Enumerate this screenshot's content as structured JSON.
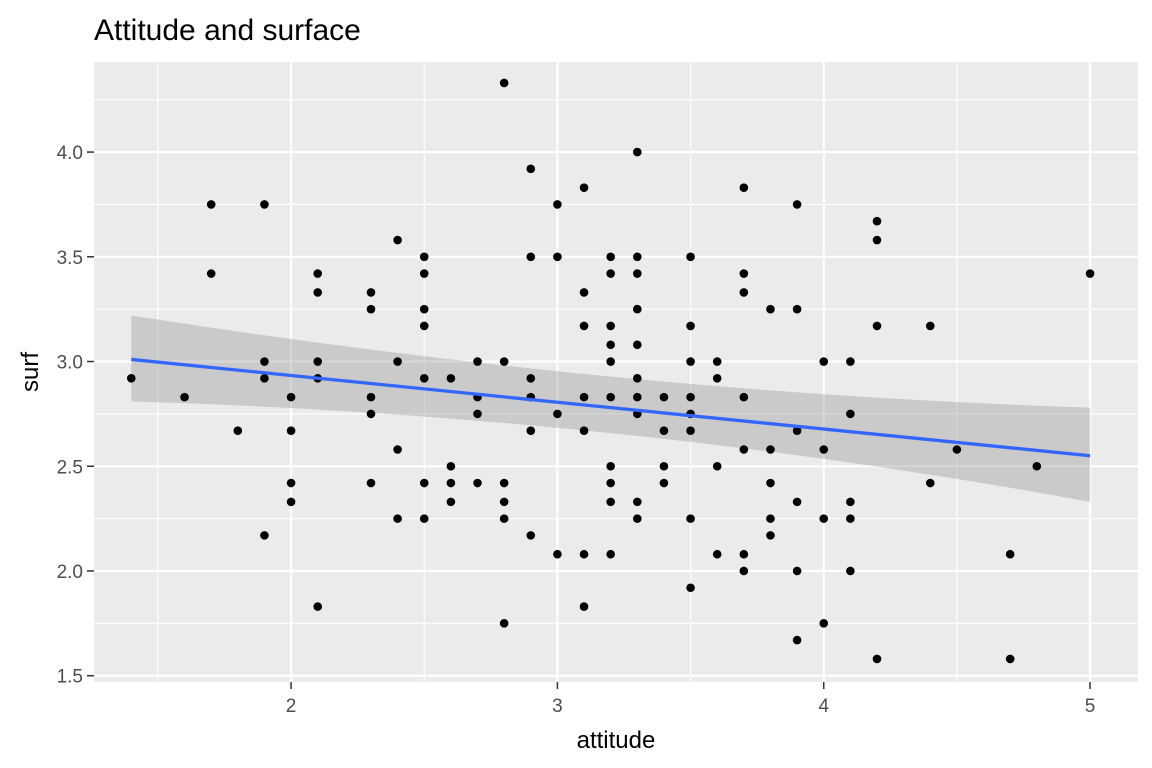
{
  "chart_data": {
    "type": "scatter",
    "title": "Attitude and surface",
    "xlabel": "attitude",
    "ylabel": "surf",
    "xlim": [
      1.26,
      5.18
    ],
    "ylim": [
      1.47,
      4.43
    ],
    "x_ticks": [
      2,
      3,
      4,
      5
    ],
    "x_tick_labels": [
      "2",
      "3",
      "4",
      "5"
    ],
    "y_ticks": [
      1.5,
      2.0,
      2.5,
      3.0,
      3.5,
      4.0
    ],
    "y_tick_labels": [
      "1.5",
      "2.0",
      "2.5",
      "3.0",
      "3.5",
      "4.0"
    ],
    "grid": true,
    "colors": {
      "panel_background": "#ebebeb",
      "grid": "#ffffff",
      "points": "#000000",
      "trend_line": "#3366ff",
      "confidence_band": "#999999"
    },
    "trend": {
      "method": "linear",
      "x": [
        1.4,
        5.0
      ],
      "y": [
        3.01,
        2.55
      ],
      "ci_lower": [
        2.81,
        2.33
      ],
      "ci_upper": [
        3.22,
        2.78
      ],
      "ci_mid_x": 3.25,
      "ci_mid_lower": 2.74,
      "ci_mid_upper": 2.85
    },
    "points": [
      [
        1.4,
        2.92
      ],
      [
        1.6,
        2.83
      ],
      [
        1.7,
        3.75
      ],
      [
        1.7,
        3.42
      ],
      [
        1.8,
        2.67
      ],
      [
        1.9,
        3.75
      ],
      [
        1.9,
        3.0
      ],
      [
        1.9,
        2.92
      ],
      [
        1.9,
        2.17
      ],
      [
        2.0,
        2.83
      ],
      [
        2.0,
        2.67
      ],
      [
        2.0,
        2.42
      ],
      [
        2.0,
        2.33
      ],
      [
        2.1,
        3.42
      ],
      [
        2.1,
        3.33
      ],
      [
        2.1,
        3.0
      ],
      [
        2.1,
        2.92
      ],
      [
        2.1,
        1.83
      ],
      [
        2.3,
        3.33
      ],
      [
        2.3,
        3.25
      ],
      [
        2.3,
        2.83
      ],
      [
        2.3,
        2.75
      ],
      [
        2.3,
        2.42
      ],
      [
        2.4,
        3.58
      ],
      [
        2.4,
        3.0
      ],
      [
        2.4,
        2.58
      ],
      [
        2.4,
        2.25
      ],
      [
        2.5,
        3.5
      ],
      [
        2.5,
        3.42
      ],
      [
        2.5,
        3.25
      ],
      [
        2.5,
        3.17
      ],
      [
        2.5,
        2.92
      ],
      [
        2.5,
        2.42
      ],
      [
        2.5,
        2.25
      ],
      [
        2.6,
        2.92
      ],
      [
        2.6,
        2.5
      ],
      [
        2.6,
        2.42
      ],
      [
        2.6,
        2.33
      ],
      [
        2.7,
        3.0
      ],
      [
        2.7,
        2.83
      ],
      [
        2.7,
        2.75
      ],
      [
        2.7,
        2.42
      ],
      [
        2.8,
        4.33
      ],
      [
        2.8,
        3.0
      ],
      [
        2.8,
        2.42
      ],
      [
        2.8,
        2.33
      ],
      [
        2.8,
        2.25
      ],
      [
        2.8,
        1.75
      ],
      [
        2.9,
        3.92
      ],
      [
        2.9,
        3.5
      ],
      [
        2.9,
        2.92
      ],
      [
        2.9,
        2.83
      ],
      [
        2.9,
        2.67
      ],
      [
        2.9,
        2.17
      ],
      [
        3.0,
        3.75
      ],
      [
        3.0,
        3.5
      ],
      [
        3.0,
        2.75
      ],
      [
        3.0,
        2.08
      ],
      [
        3.1,
        3.83
      ],
      [
        3.1,
        3.33
      ],
      [
        3.1,
        3.17
      ],
      [
        3.1,
        2.83
      ],
      [
        3.1,
        2.67
      ],
      [
        3.1,
        2.08
      ],
      [
        3.1,
        1.83
      ],
      [
        3.2,
        3.5
      ],
      [
        3.2,
        3.42
      ],
      [
        3.2,
        3.17
      ],
      [
        3.2,
        3.08
      ],
      [
        3.2,
        3.0
      ],
      [
        3.2,
        2.83
      ],
      [
        3.2,
        2.5
      ],
      [
        3.2,
        2.42
      ],
      [
        3.2,
        2.33
      ],
      [
        3.2,
        2.08
      ],
      [
        3.3,
        4.0
      ],
      [
        3.3,
        3.5
      ],
      [
        3.3,
        3.42
      ],
      [
        3.3,
        3.25
      ],
      [
        3.3,
        3.08
      ],
      [
        3.3,
        2.92
      ],
      [
        3.3,
        2.83
      ],
      [
        3.3,
        2.75
      ],
      [
        3.3,
        2.33
      ],
      [
        3.3,
        2.25
      ],
      [
        3.4,
        2.83
      ],
      [
        3.4,
        2.67
      ],
      [
        3.4,
        2.5
      ],
      [
        3.4,
        2.42
      ],
      [
        3.5,
        3.5
      ],
      [
        3.5,
        3.17
      ],
      [
        3.5,
        3.0
      ],
      [
        3.5,
        2.83
      ],
      [
        3.5,
        2.75
      ],
      [
        3.5,
        2.67
      ],
      [
        3.5,
        2.25
      ],
      [
        3.5,
        1.92
      ],
      [
        3.6,
        3.0
      ],
      [
        3.6,
        2.92
      ],
      [
        3.6,
        2.5
      ],
      [
        3.6,
        2.08
      ],
      [
        3.7,
        3.83
      ],
      [
        3.7,
        3.42
      ],
      [
        3.7,
        3.33
      ],
      [
        3.7,
        2.83
      ],
      [
        3.7,
        2.58
      ],
      [
        3.7,
        2.08
      ],
      [
        3.7,
        2.0
      ],
      [
        3.8,
        3.25
      ],
      [
        3.8,
        2.58
      ],
      [
        3.8,
        2.42
      ],
      [
        3.8,
        2.25
      ],
      [
        3.8,
        2.17
      ],
      [
        3.9,
        3.75
      ],
      [
        3.9,
        3.25
      ],
      [
        3.9,
        2.67
      ],
      [
        3.9,
        2.33
      ],
      [
        3.9,
        2.0
      ],
      [
        3.9,
        1.67
      ],
      [
        4.0,
        3.0
      ],
      [
        4.0,
        2.58
      ],
      [
        4.0,
        2.25
      ],
      [
        4.0,
        1.75
      ],
      [
        4.1,
        3.0
      ],
      [
        4.1,
        2.75
      ],
      [
        4.1,
        2.33
      ],
      [
        4.1,
        2.25
      ],
      [
        4.1,
        2.0
      ],
      [
        4.2,
        3.67
      ],
      [
        4.2,
        3.58
      ],
      [
        4.2,
        3.17
      ],
      [
        4.2,
        1.58
      ],
      [
        4.4,
        3.17
      ],
      [
        4.4,
        2.42
      ],
      [
        4.5,
        2.58
      ],
      [
        4.7,
        2.08
      ],
      [
        4.7,
        1.58
      ],
      [
        4.8,
        2.5
      ],
      [
        5.0,
        3.42
      ]
    ]
  }
}
